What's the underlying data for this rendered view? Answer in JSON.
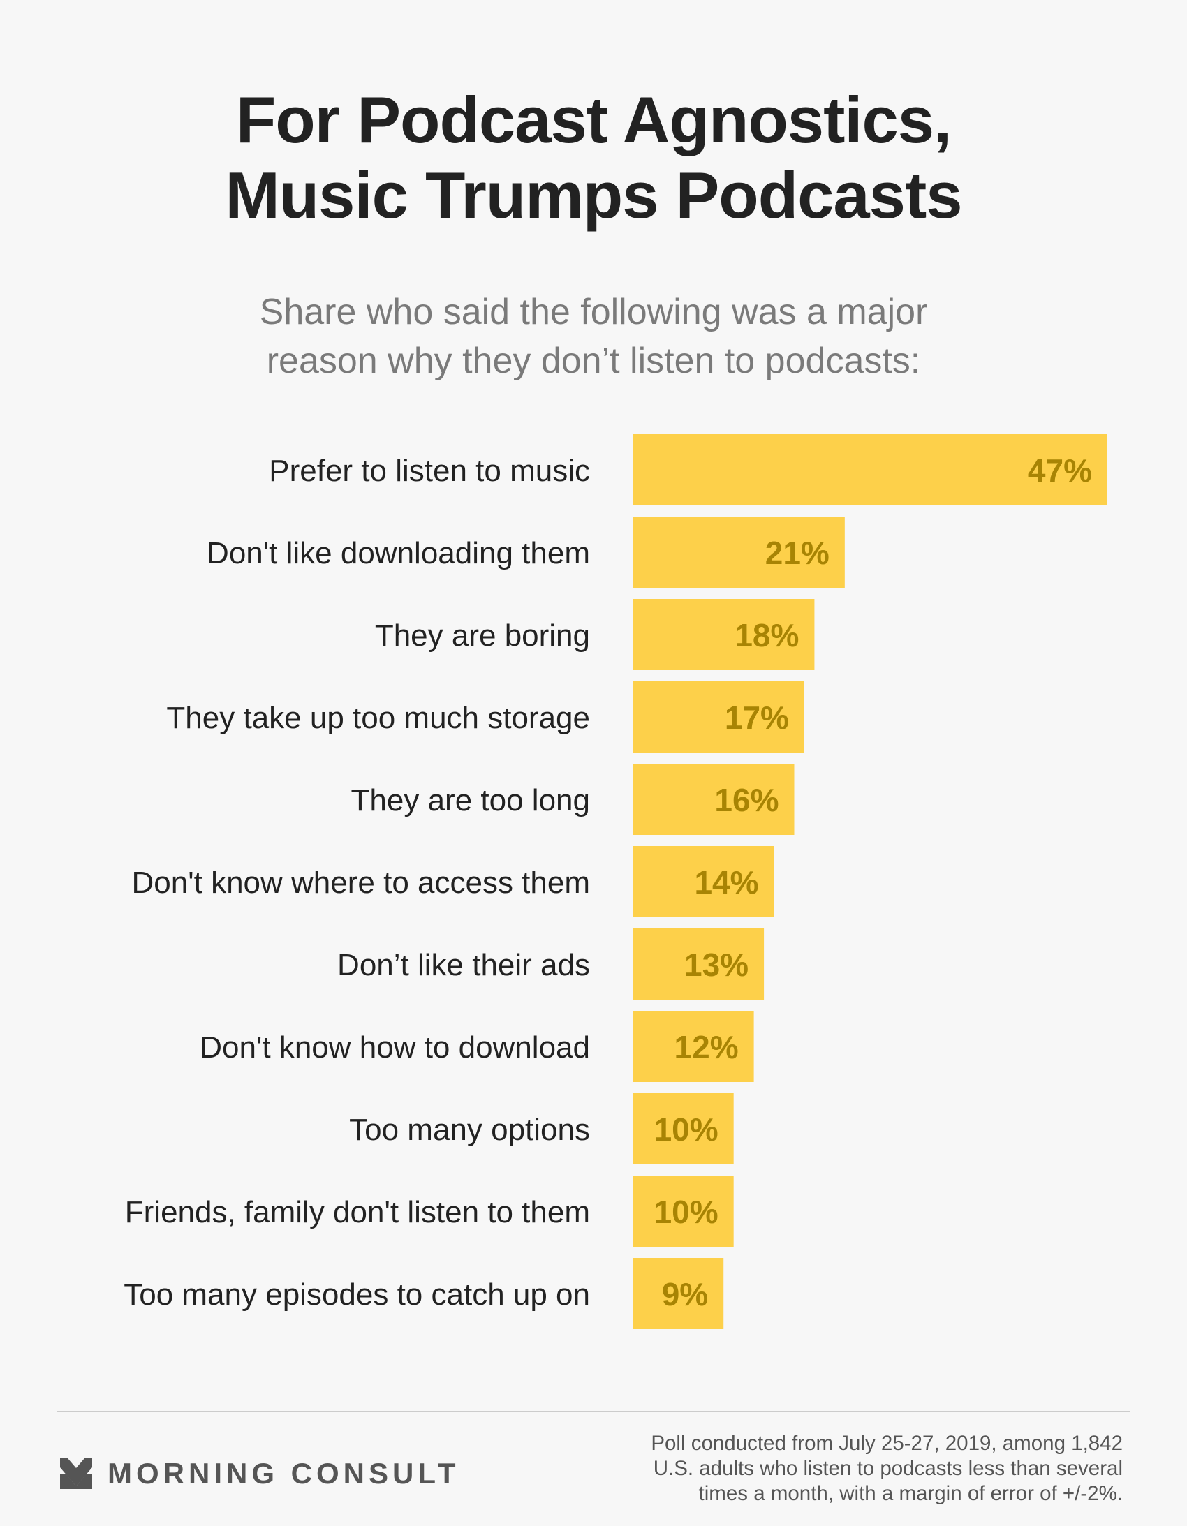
{
  "header": {
    "title_lines": [
      "For Podcast Agnostics,",
      "Music Trumps Podcasts"
    ],
    "subtitle_lines": [
      "Share who said the following was a major",
      "reason why they don’t listen to podcasts:"
    ]
  },
  "chart_data": {
    "type": "bar",
    "orientation": "horizontal",
    "title": "For Podcast Agnostics, Music Trumps Podcasts",
    "subtitle": "Share who said the following was a major reason why they don’t listen to podcasts:",
    "xlabel": "",
    "ylabel": "",
    "categories": [
      "Prefer to listen to music",
      "Don't like downloading them",
      "They are boring",
      "They take up too much storage",
      "They are too long",
      "Don't know where to access them",
      "Don’t like their ads",
      "Don't know how to download",
      "Too many options",
      "Friends, family don't listen to them",
      "Too many episodes to catch up on"
    ],
    "values": [
      47,
      21,
      18,
      17,
      16,
      14,
      13,
      12,
      10,
      10,
      9
    ],
    "value_labels": [
      "47%",
      "21%",
      "18%",
      "17%",
      "16%",
      "14%",
      "13%",
      "12%",
      "10%",
      "10%",
      "9%"
    ],
    "unit": "%",
    "xlim": [
      0,
      47
    ],
    "grid": false,
    "legend": "none",
    "bar_color": "#fdd04a",
    "label_color": "#a88404"
  },
  "footer": {
    "brand": "MORNING CONSULT",
    "logo_icon": "morning-consult-logo-icon",
    "note_lines": [
      "Poll conducted from July 25-27, 2019, among 1,842",
      "U.S. adults who listen to podcasts less than several",
      "times a month, with a margin of error of +/-2%."
    ]
  }
}
